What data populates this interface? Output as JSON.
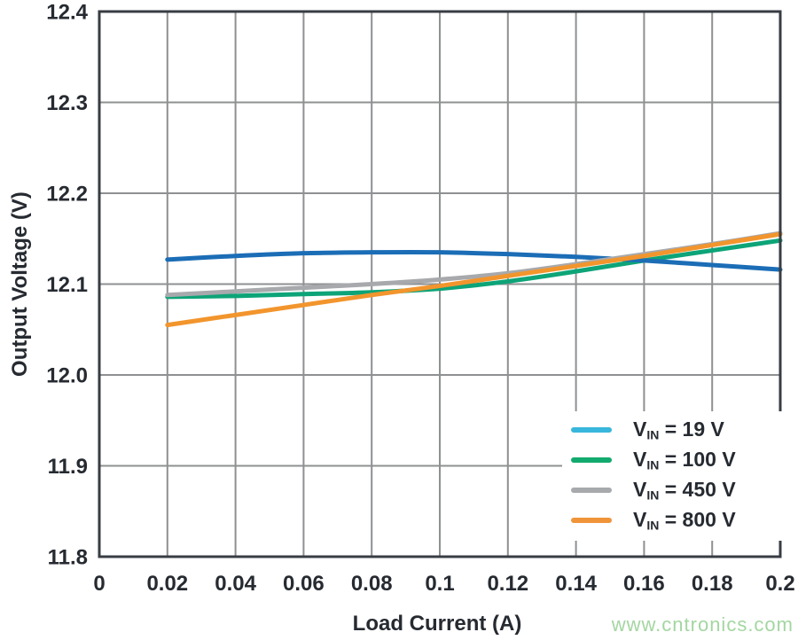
{
  "watermark": "www.cntronics.com",
  "colors": {
    "grid": "#8e9092",
    "axis_border": "#383d44",
    "text": "#262a31",
    "watermark": "#a4d6a1",
    "background": "#ffffff"
  },
  "chart_data": {
    "type": "line",
    "title": "",
    "xlabel": "Load Current (A)",
    "ylabel": "Output Voltage (V)",
    "xlim": [
      0,
      0.2
    ],
    "ylim": [
      11.8,
      12.4
    ],
    "grid": true,
    "legend_position": "lower right",
    "x_ticks": [
      0,
      0.02,
      0.04,
      0.06,
      0.08,
      0.1,
      0.12,
      0.14,
      0.16,
      0.18,
      0.2
    ],
    "x_tick_labels": [
      "0",
      "0.02",
      "0.04",
      "0.06",
      "0.08",
      "0.1",
      "0.12",
      "0.14",
      "0.16",
      "0.18",
      "0.2"
    ],
    "y_ticks": [
      11.8,
      11.9,
      12.0,
      12.1,
      12.2,
      12.3,
      12.4
    ],
    "y_tick_labels": [
      "11.8",
      "11.9",
      "12.0",
      "12.1",
      "12.2",
      "12.3",
      "12.4"
    ],
    "x": [
      0.02,
      0.04,
      0.06,
      0.08,
      0.1,
      0.12,
      0.14,
      0.16,
      0.18,
      0.2
    ],
    "series": [
      {
        "name": "VIN = 19 V",
        "label_pre": "V",
        "label_sub": "IN",
        "label_post": " = 19 V",
        "line_color": "#1b6db6",
        "legend_color": "#38b6dc",
        "values": [
          12.127,
          12.131,
          12.134,
          12.135,
          12.135,
          12.133,
          12.13,
          12.126,
          12.121,
          12.116
        ]
      },
      {
        "name": "VIN = 100 V",
        "label_pre": "V",
        "label_sub": "IN",
        "label_post": " = 100 V",
        "line_color": "#0da478",
        "legend_color": "#12aa6e",
        "values": [
          12.086,
          12.087,
          12.089,
          12.091,
          12.095,
          12.103,
          12.114,
          12.126,
          12.137,
          12.148
        ]
      },
      {
        "name": "VIN = 450 V",
        "label_pre": "V",
        "label_sub": "IN",
        "label_post": " = 450 V",
        "line_color": "#a7a9ac",
        "legend_color": "#a7a9ac",
        "values": [
          12.088,
          12.092,
          12.096,
          12.1,
          12.105,
          12.112,
          12.122,
          12.133,
          12.144,
          12.156
        ]
      },
      {
        "name": "VIN = 800 V",
        "label_pre": "V",
        "label_sub": "IN",
        "label_post": " = 800 V",
        "line_color": "#f2952d",
        "legend_color": "#f0943a",
        "values": [
          12.055,
          12.066,
          12.077,
          12.088,
          12.098,
          12.109,
          12.12,
          12.131,
          12.143,
          12.155
        ]
      }
    ]
  }
}
